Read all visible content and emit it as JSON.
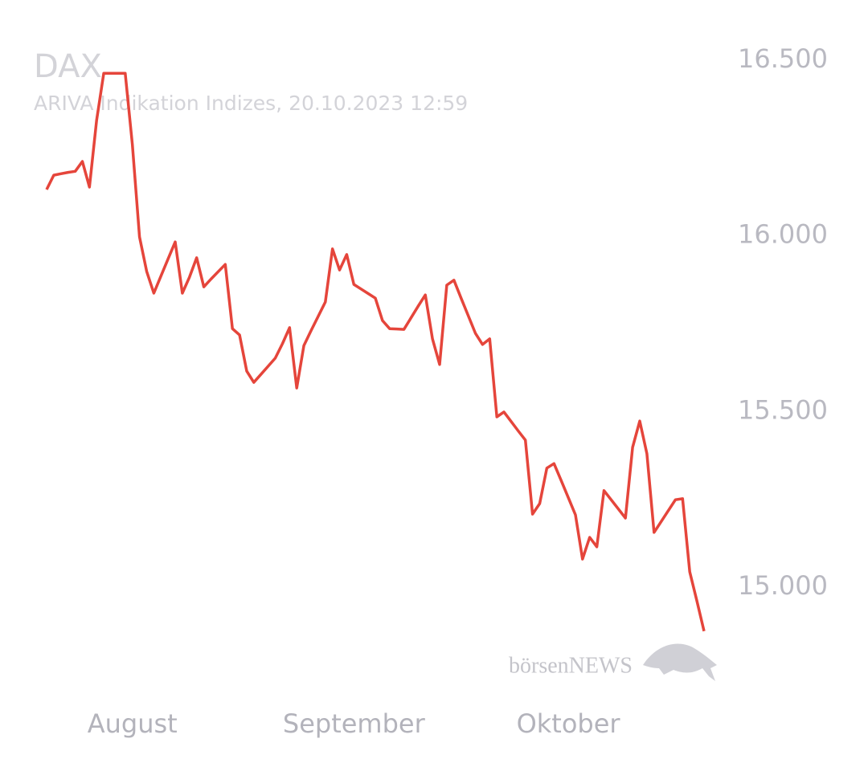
{
  "chart_data": {
    "type": "line",
    "title": "DAX",
    "subtitle": "ARIVA Indikation Indizes, 20.10.2023 12:59",
    "watermark": "börsenNEWS",
    "categories": [
      null,
      null,
      null,
      null,
      null,
      null,
      null,
      null,
      null,
      null,
      null,
      null,
      "August",
      null,
      null,
      null,
      null,
      null,
      null,
      null,
      null,
      null,
      null,
      null,
      null,
      null,
      null,
      null,
      null,
      null,
      null,
      null,
      null,
      null,
      null,
      null,
      null,
      null,
      null,
      null,
      null,
      null,
      null,
      "September",
      null,
      null,
      null,
      null,
      null,
      null,
      null,
      null,
      null,
      null,
      null,
      null,
      null,
      null,
      null,
      null,
      null,
      null,
      null,
      null,
      null,
      null,
      null,
      null,
      null,
      null,
      null,
      null,
      null,
      "Oktober",
      null,
      null,
      null,
      null,
      null,
      null,
      null,
      null,
      null,
      null,
      null,
      null,
      null,
      null,
      null,
      null,
      null,
      null,
      null
    ],
    "values": [
      16132,
      16173,
      16177,
      16181,
      16184,
      16212,
      16139,
      16329,
      16463,
      16463,
      16463,
      16463,
      16260,
      15997,
      15899,
      15837,
      15886,
      15935,
      15983,
      15837,
      15883,
      15938,
      15855,
      15877,
      15898,
      15919,
      15736,
      15718,
      15615,
      15583,
      15606,
      15629,
      15652,
      15693,
      15739,
      15567,
      15688,
      15730,
      15771,
      15812,
      15963,
      15903,
      15947,
      15862,
      15849,
      15836,
      15823,
      15759,
      15736,
      15735,
      15734,
      15767,
      15800,
      15832,
      15707,
      15634,
      15860,
      15874,
      15823,
      15773,
      15723,
      15691,
      15707,
      15485,
      15499,
      15472,
      15445,
      15419,
      15208,
      15238,
      15339,
      15352,
      15304,
      15255,
      15206,
      15080,
      15142,
      15115,
      15275,
      15249,
      15223,
      15197,
      15398,
      15473,
      15380,
      15156,
      15187,
      15218,
      15249,
      15252,
      15044,
      14961,
      14875
    ],
    "color": "#e5453b",
    "ylim": [
      14800,
      16600
    ],
    "yticks": [
      {
        "value": 15000,
        "label": "15.000"
      },
      {
        "value": 15500,
        "label": "15.500"
      },
      {
        "value": 16000,
        "label": "16.000"
      },
      {
        "value": 16500,
        "label": "16.500"
      }
    ],
    "grid": false
  }
}
